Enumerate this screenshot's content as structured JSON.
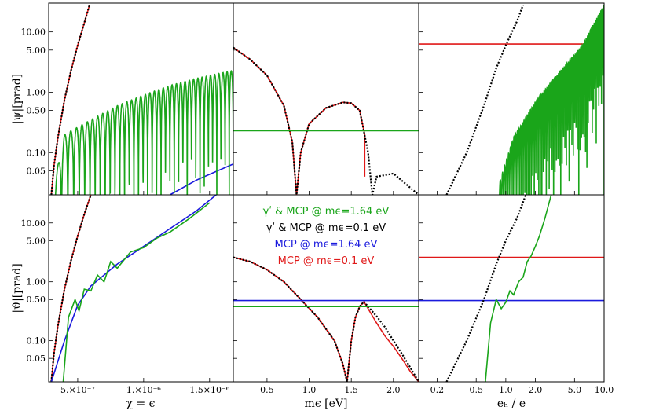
{
  "chart_data": {
    "type": "line",
    "layout": "2x3 panel grid",
    "y_ticks": [
      "10.00",
      "5.00",
      "1.00",
      "0.50",
      "0.10",
      "0.05"
    ],
    "y_tick_values": [
      10,
      5,
      1,
      0.5,
      0.1,
      0.05
    ],
    "y_scale": "log",
    "ylim": [
      0.02,
      30
    ],
    "row_labels": [
      "|ψ|[prad]",
      "|ϑ|[prad]"
    ],
    "columns": [
      {
        "xlabel": "χ = ϵ",
        "scale": "linear",
        "xlim": [
          2.8e-07,
          1.68e-06
        ],
        "ticks": [
          {
            "v": 5e-07,
            "t": "5.×10⁻⁷"
          },
          {
            "v": 1e-06,
            "t": "1.×10⁻⁶"
          },
          {
            "v": 1.5e-06,
            "t": "1.5×10⁻⁶"
          }
        ]
      },
      {
        "xlabel": "mϵ [eV]",
        "scale": "linear",
        "xlim": [
          0.1,
          2.3
        ],
        "ticks": [
          {
            "v": 0.5,
            "t": "0.5"
          },
          {
            "v": 1.0,
            "t": "1.0"
          },
          {
            "v": 1.5,
            "t": "1.5"
          },
          {
            "v": 2.0,
            "t": "2.0"
          }
        ]
      },
      {
        "xlabel": "eₕ / e",
        "scale": "log",
        "xlim": [
          0.13,
          10
        ],
        "ticks": [
          {
            "v": 0.2,
            "t": "0.2"
          },
          {
            "v": 0.5,
            "t": "0.5"
          },
          {
            "v": 1.0,
            "t": "1.0"
          },
          {
            "v": 2.0,
            "t": "2.0"
          },
          {
            "v": 5.0,
            "t": "5.0"
          },
          {
            "v": 10,
            "t": "10.0"
          }
        ]
      }
    ],
    "legend_position": "inside bottom-middle panel, top",
    "legend": [
      {
        "text": "γʹ & MCP @ mϵ=1.64 eV",
        "color": "#1aa51a"
      },
      {
        "text": "γʹ & MCP @ mϵ=0.1 eV",
        "color": "#000000"
      },
      {
        "text": "MCP @ mϵ=1.64 eV",
        "color": "#1a1add"
      },
      {
        "text": "MCP @ mϵ=0.1 eV",
        "color": "#e01818"
      }
    ],
    "panels": [
      {
        "row": 0,
        "col": 0,
        "series": [
          {
            "color": "#e01818",
            "x": [
              3e-07,
              3.2e-07,
              3.5e-07,
              4e-07,
              4.5e-07,
              5e-07,
              5.5e-07,
              5.9e-07
            ],
            "y": [
              0.02,
              0.06,
              0.18,
              0.75,
              2.3,
              6.0,
              14,
              28
            ]
          },
          {
            "color": "#000000",
            "dash": true,
            "x": [
              3e-07,
              3.2e-07,
              3.5e-07,
              4e-07,
              4.5e-07,
              5e-07,
              5.5e-07,
              5.9e-07
            ],
            "y": [
              0.02,
              0.06,
              0.18,
              0.75,
              2.3,
              6.0,
              14,
              28
            ]
          },
          {
            "color": "#1a1add",
            "x": [
              1.2e-06,
              1.4e-06,
              1.68e-06
            ],
            "y": [
              0.02,
              0.035,
              0.065
            ]
          },
          {
            "color": "#1aa51a",
            "oscillating": true,
            "envelope_x": [
              3.2e-07,
              4e-07,
              6e-07,
              8e-07,
              1e-06,
              1.2e-06,
              1.4e-06,
              1.68e-06
            ],
            "envelope_y": [
              0.03,
              0.2,
              0.35,
              0.6,
              0.9,
              1.3,
              1.7,
              2.3
            ],
            "periods": 38
          }
        ]
      },
      {
        "row": 0,
        "col": 1,
        "series": [
          {
            "color": "#e01818",
            "x": [
              0.1,
              0.3,
              0.5,
              0.7,
              0.8,
              0.85,
              0.9,
              1.0,
              1.2,
              1.4,
              1.5,
              1.6,
              1.66,
              1.66
            ],
            "y": [
              5.5,
              3.5,
              1.9,
              0.6,
              0.15,
              0.02,
              0.1,
              0.3,
              0.55,
              0.68,
              0.66,
              0.5,
              0.2,
              0.04
            ]
          },
          {
            "color": "#000000",
            "dash": true,
            "x": [
              0.1,
              0.3,
              0.5,
              0.7,
              0.8,
              0.85,
              0.9,
              1.0,
              1.2,
              1.4,
              1.5,
              1.6,
              1.7,
              1.75,
              1.8,
              2.0,
              2.3
            ],
            "y": [
              5.5,
              3.5,
              1.9,
              0.6,
              0.15,
              0.02,
              0.1,
              0.3,
              0.55,
              0.68,
              0.66,
              0.5,
              0.1,
              0.02,
              0.04,
              0.045,
              0.02
            ]
          },
          {
            "color": "#1aa51a",
            "x": [
              0.1,
              2.3
            ],
            "y": [
              0.23,
              0.23
            ]
          }
        ]
      },
      {
        "row": 0,
        "col": 2,
        "series": [
          {
            "color": "#e01818",
            "x": [
              0.13,
              10
            ],
            "y": [
              6.3,
              6.3
            ]
          },
          {
            "color": "#000000",
            "dash": true,
            "x": [
              0.25,
              0.4,
              0.6,
              0.8,
              1.0,
              1.3,
              1.5
            ],
            "y": [
              0.02,
              0.1,
              0.6,
              2.5,
              6.0,
              15,
              28
            ]
          },
          {
            "color": "#1aa51a",
            "oscillating": true,
            "log_x": true,
            "envelope_x": [
              0.85,
              1.2,
              2.0,
              3.0,
              5.0,
              6.2,
              7.5,
              10
            ],
            "envelope_y": [
              0.03,
              0.18,
              0.7,
              1.6,
              4.2,
              6.5,
              12,
              28
            ],
            "periods": 70
          }
        ]
      },
      {
        "row": 1,
        "col": 0,
        "series": [
          {
            "color": "#e01818",
            "x": [
              3e-07,
              3.2e-07,
              3.5e-07,
              4e-07,
              4.5e-07,
              5e-07,
              5.5e-07,
              6e-07
            ],
            "y": [
              0.02,
              0.06,
              0.18,
              0.75,
              2.3,
              6.0,
              14,
              30
            ]
          },
          {
            "color": "#000000",
            "dash": true,
            "x": [
              3e-07,
              3.2e-07,
              3.5e-07,
              4e-07,
              4.5e-07,
              5e-07,
              5.5e-07,
              6e-07
            ],
            "y": [
              0.02,
              0.06,
              0.18,
              0.75,
              2.3,
              6.0,
              14,
              30
            ]
          },
          {
            "color": "#1a1add",
            "x": [
              3e-07,
              4e-07,
              5e-07,
              6e-07,
              8e-07,
              1e-06,
              1.2e-06,
              1.4e-06,
              1.55e-06
            ],
            "y": [
              0.02,
              0.1,
              0.4,
              0.85,
              2.0,
              4.0,
              8.0,
              16,
              30
            ]
          },
          {
            "color": "#1aa51a",
            "x": [
              3.9e-07,
              4.3e-07,
              4.8e-07,
              5.1e-07,
              5.5e-07,
              6e-07,
              6.5e-07,
              7e-07,
              7.5e-07,
              8e-07,
              9e-07,
              1e-06,
              1.1e-06,
              1.2e-06,
              1.35e-06,
              1.5e-06
            ],
            "y": [
              0.02,
              0.25,
              0.5,
              0.32,
              0.75,
              0.7,
              1.3,
              1.0,
              2.2,
              1.7,
              3.2,
              3.8,
              5.5,
              7.0,
              12,
              22
            ]
          }
        ]
      },
      {
        "row": 1,
        "col": 1,
        "series": [
          {
            "color": "#e01818",
            "x": [
              0.1,
              0.3,
              0.5,
              0.7,
              0.9,
              1.1,
              1.3,
              1.4,
              1.45,
              1.5,
              1.55,
              1.6,
              1.65,
              1.7,
              1.8,
              1.9,
              2.0,
              2.1,
              2.2,
              2.3
            ],
            "y": [
              2.6,
              2.2,
              1.6,
              1.0,
              0.5,
              0.25,
              0.1,
              0.04,
              0.02,
              0.1,
              0.25,
              0.38,
              0.46,
              0.35,
              0.2,
              0.12,
              0.08,
              0.05,
              0.03,
              0.02
            ]
          },
          {
            "color": "#000000",
            "dash": true,
            "x": [
              0.1,
              0.3,
              0.5,
              0.7,
              0.9,
              1.1,
              1.3,
              1.4,
              1.45,
              1.5,
              1.55,
              1.6,
              1.65,
              1.7,
              1.8,
              1.9,
              2.0,
              2.1,
              2.2,
              2.3
            ],
            "y": [
              2.6,
              2.2,
              1.6,
              1.0,
              0.5,
              0.25,
              0.1,
              0.04,
              0.02,
              0.1,
              0.25,
              0.38,
              0.46,
              0.38,
              0.26,
              0.17,
              0.1,
              0.06,
              0.035,
              0.02
            ]
          },
          {
            "color": "#1a1add",
            "x": [
              0.1,
              2.3
            ],
            "y": [
              0.48,
              0.48
            ]
          },
          {
            "color": "#1aa51a",
            "x": [
              0.1,
              2.3
            ],
            "y": [
              0.38,
              0.38
            ]
          }
        ]
      },
      {
        "row": 1,
        "col": 2,
        "series": [
          {
            "color": "#e01818",
            "x": [
              0.13,
              10
            ],
            "y": [
              2.6,
              2.6
            ]
          },
          {
            "color": "#1a1add",
            "x": [
              0.13,
              10
            ],
            "y": [
              0.48,
              0.48
            ]
          },
          {
            "color": "#000000",
            "dash": true,
            "x": [
              0.25,
              0.4,
              0.6,
              0.8,
              1.0,
              1.3,
              1.6
            ],
            "y": [
              0.02,
              0.1,
              0.5,
              2.0,
              5.0,
              12,
              30
            ]
          },
          {
            "color": "#1aa51a",
            "x": [
              0.62,
              0.7,
              0.8,
              0.9,
              1.0,
              1.1,
              1.2,
              1.35,
              1.5,
              1.65,
              1.8,
              2.0,
              2.2,
              2.5,
              2.9
            ],
            "y": [
              0.02,
              0.2,
              0.5,
              0.35,
              0.45,
              0.7,
              0.6,
              1.0,
              1.2,
              2.2,
              2.7,
              4.0,
              6.0,
              12,
              30
            ]
          }
        ]
      }
    ]
  }
}
